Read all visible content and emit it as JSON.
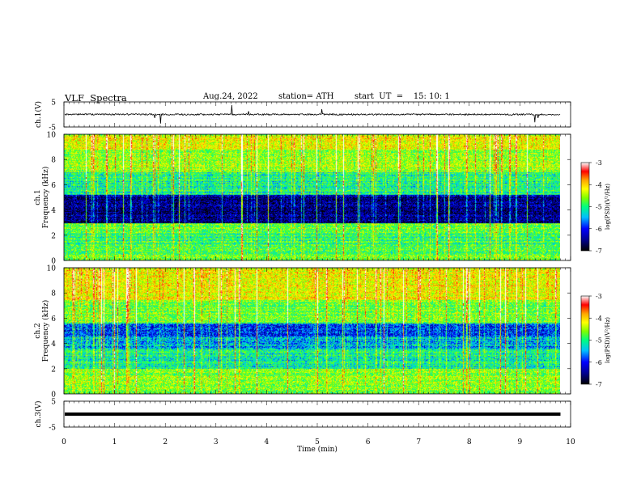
{
  "header": {
    "title": "VLF  Spectra",
    "date": "Aug.24, 2022",
    "station": "station= ATH",
    "start": "start  UT  =    15: 10: 1"
  },
  "chart_data": {
    "type": "heatmap",
    "xlabel": "Time  (min)",
    "xlim": [
      0,
      10
    ],
    "x_ticks": [
      "0",
      "1",
      "2",
      "3",
      "4",
      "5",
      "6",
      "7",
      "8",
      "9",
      "10"
    ],
    "time_end_min": 9.8,
    "panels": [
      {
        "type": "line",
        "ylabel": "ch.1(V)",
        "ylim": [
          -5,
          5
        ],
        "y_ticks": [
          "5",
          "-5"
        ],
        "baseline_v": 0,
        "noise_amplitude_v": 1
      },
      {
        "type": "heatmap",
        "ylabel_line1": "ch.1",
        "ylabel_line2": "Frequency  (kHz)",
        "ylim": [
          0,
          10
        ],
        "y_ticks": [
          "10",
          "8",
          "6",
          "4",
          "2",
          "0"
        ],
        "colorbar": {
          "label": "log(PSD)(V²/Hz)",
          "range": [
            -7,
            -3
          ],
          "ticks": [
            "-3",
            "-4",
            "-5",
            "-6",
            "-7"
          ]
        },
        "bands": [
          {
            "from": 0,
            "to": 0.5,
            "level": -5
          },
          {
            "from": 0.5,
            "to": 2.2,
            "level": -5.2
          },
          {
            "from": 2.2,
            "to": 3.0,
            "level": -5.0
          },
          {
            "from": 3.0,
            "to": 5.2,
            "level": -6.7
          },
          {
            "from": 5.2,
            "to": 7.0,
            "level": -5.4
          },
          {
            "from": 7.0,
            "to": 8.8,
            "level": -4.9
          },
          {
            "from": 8.8,
            "to": 10,
            "level": -4.6
          }
        ]
      },
      {
        "type": "heatmap",
        "ylabel_line1": "ch.2",
        "ylabel_line2": "Frequency  (kHz)",
        "ylim": [
          0,
          10
        ],
        "y_ticks": [
          "10",
          "8",
          "6",
          "4",
          "2",
          "0"
        ],
        "colorbar": {
          "label": "log(PSD)(V²/Hz)",
          "range": [
            -7,
            -3
          ],
          "ticks": [
            "-3",
            "-4",
            "-5",
            "-6",
            "-7"
          ]
        },
        "bands": [
          {
            "from": 0,
            "to": 0.5,
            "level": -5
          },
          {
            "from": 0.5,
            "to": 2.0,
            "level": -4.9
          },
          {
            "from": 2.0,
            "to": 3.6,
            "level": -5.4
          },
          {
            "from": 3.6,
            "to": 4.6,
            "level": -5.8
          },
          {
            "from": 4.6,
            "to": 5.6,
            "level": -6.1
          },
          {
            "from": 5.6,
            "to": 7.5,
            "level": -5.0
          },
          {
            "from": 7.5,
            "to": 10,
            "level": -4.5
          }
        ]
      },
      {
        "type": "line",
        "ylabel": "ch.3(V)",
        "ylim": [
          -5,
          5
        ],
        "y_ticks": [
          "5",
          "-5"
        ],
        "baseline_v": 0
      }
    ],
    "colors": {
      "frame": "#000000",
      "trace": "#000000",
      "colormap": [
        "#000000",
        "#00008b",
        "#0000ff",
        "#00bfff",
        "#00ff7f",
        "#7fff00",
        "#ffff00",
        "#ffa500",
        "#ff0000",
        "#ffffff"
      ]
    }
  }
}
